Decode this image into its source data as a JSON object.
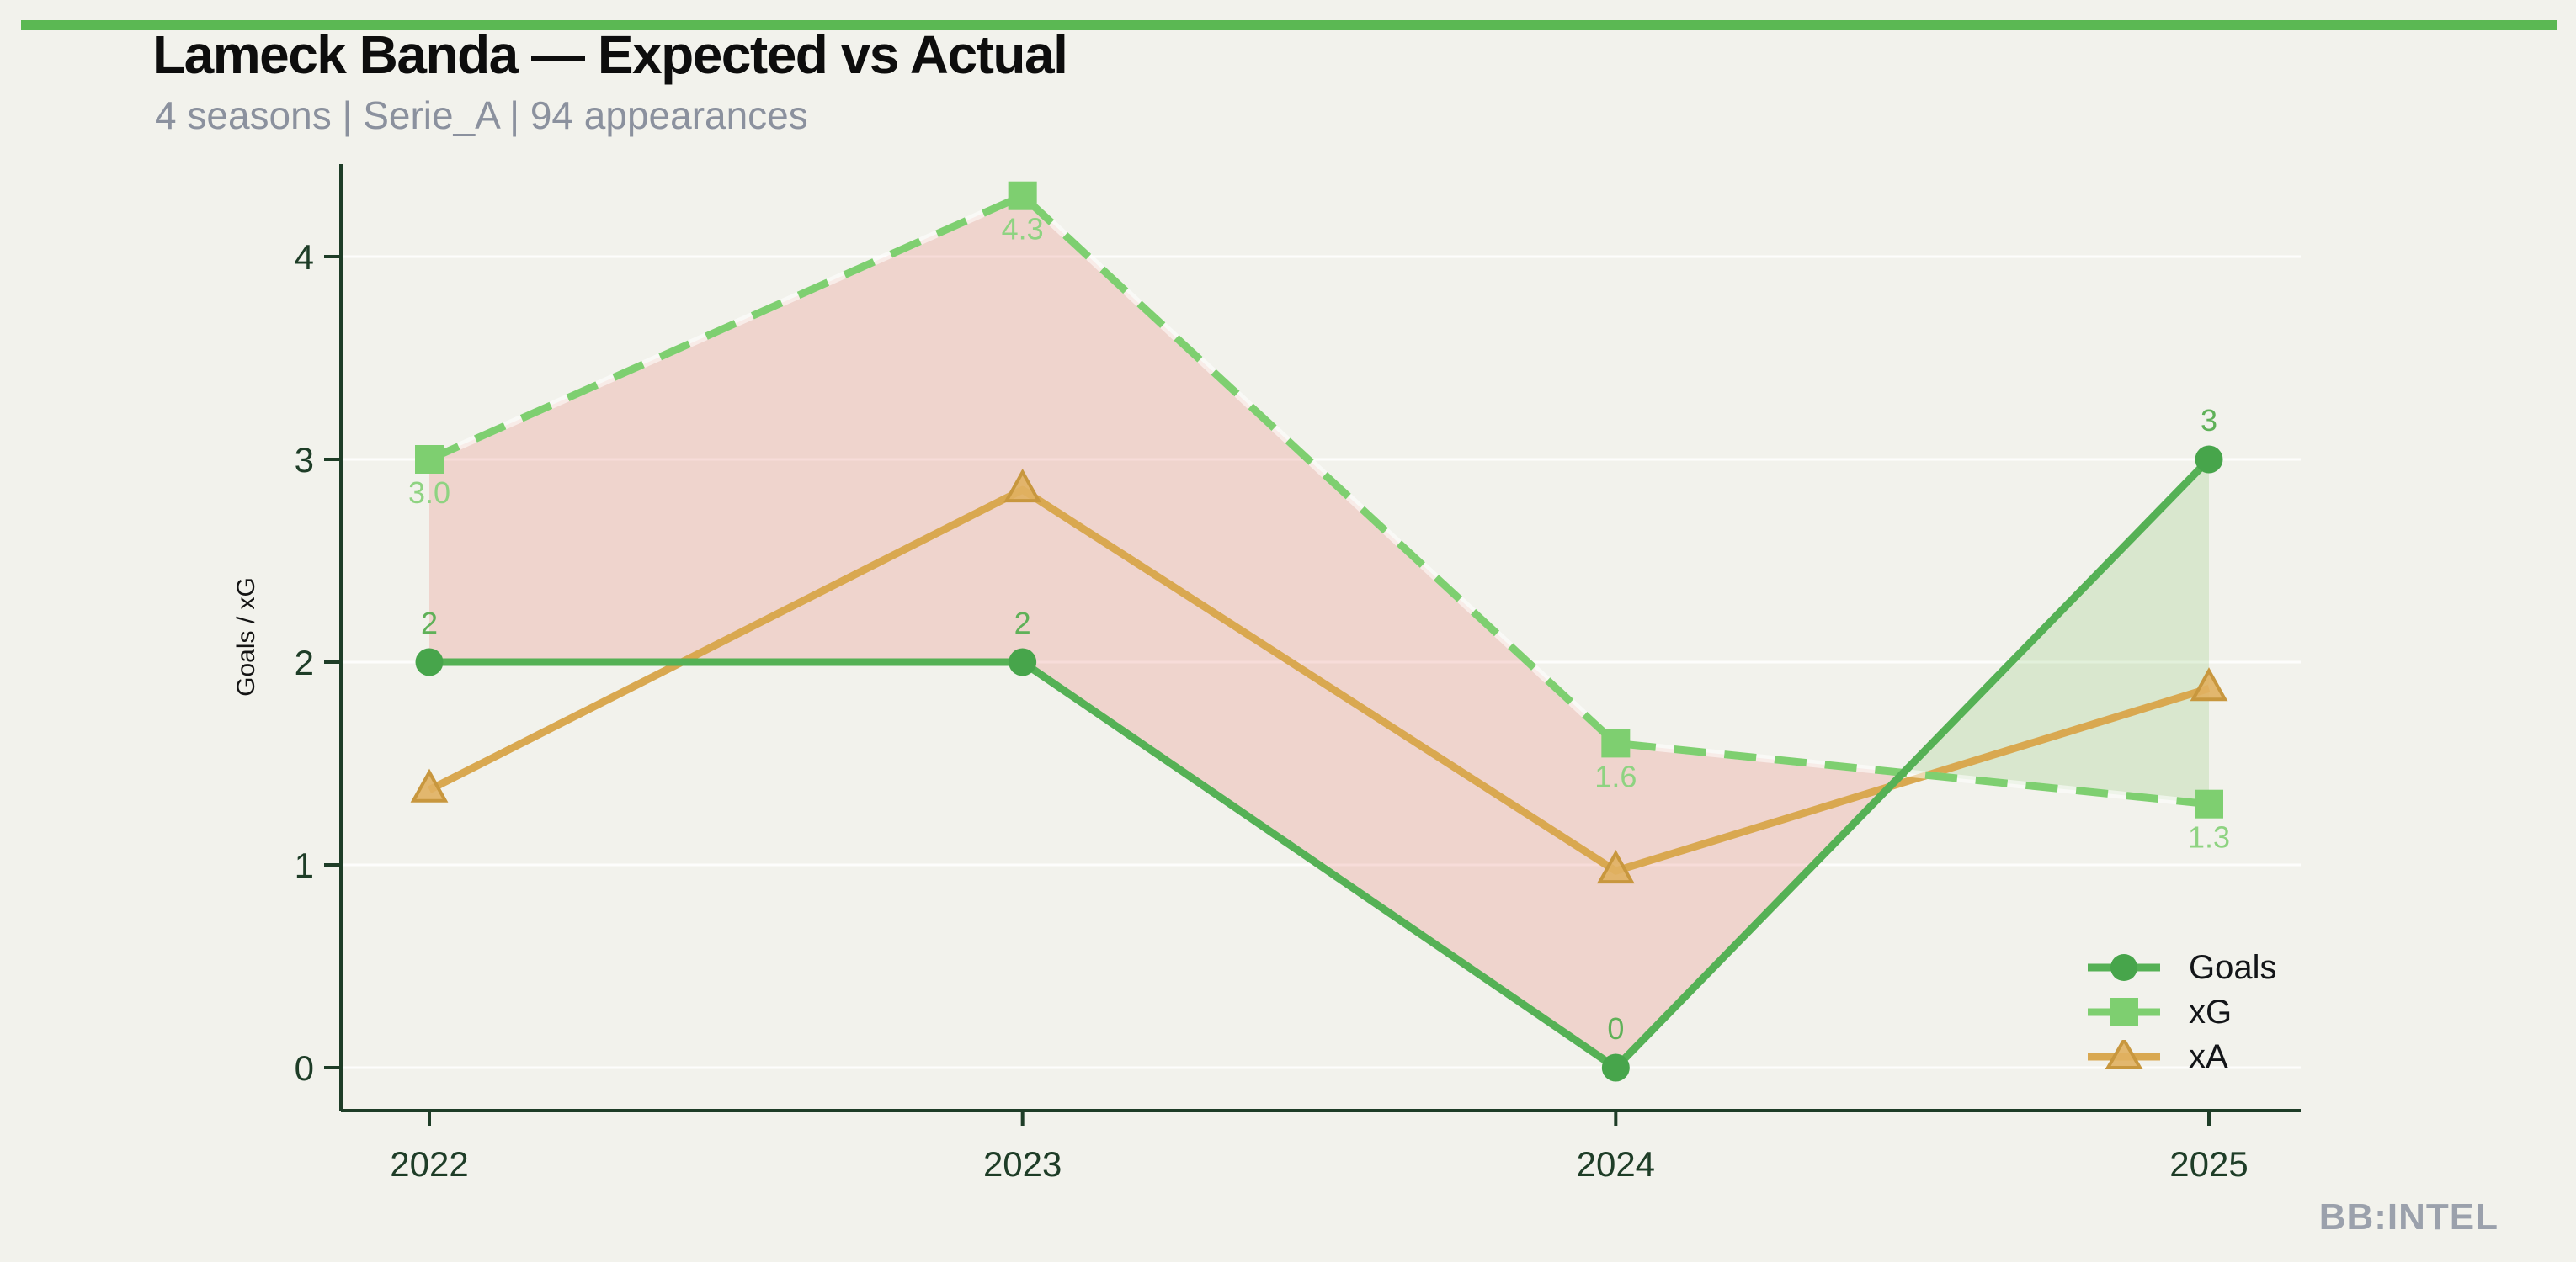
{
  "page": {
    "background_color": "#f2f2ec",
    "accent_bar_color": "#5bb853"
  },
  "header": {
    "title": "Lameck Banda — Expected vs Actual",
    "subtitle": "4 seasons | Serie_A | 94 appearances"
  },
  "watermark": "BB:INTEL",
  "chart_data": {
    "type": "line",
    "title": "Lameck Banda — Expected vs Actual",
    "subtitle": "4 seasons | Serie_A | 94 appearances",
    "categories": [
      "2022",
      "2023",
      "2024",
      "2025"
    ],
    "series": [
      {
        "name": "Goals",
        "values": [
          2,
          2,
          0,
          3
        ],
        "point_labels": [
          "2",
          "2",
          "0",
          "3"
        ],
        "label_position": "above",
        "style": "solid",
        "marker": "circle",
        "color": "#55b155",
        "marker_color": "#47a54b",
        "label_color": "#5fb158"
      },
      {
        "name": "xG",
        "values": [
          3.0,
          4.3,
          1.6,
          1.3
        ],
        "point_labels": [
          "3.0",
          "4.3",
          "1.6",
          "1.3"
        ],
        "label_position": "below",
        "style": "dashed",
        "marker": "square",
        "color": "#7ecf70",
        "marker_color": "#7ecf70",
        "label_color": "#8ed381"
      },
      {
        "name": "xA",
        "values": [
          1.37,
          2.85,
          0.97,
          1.87
        ],
        "point_labels": [
          "",
          "",
          "",
          ""
        ],
        "label_position": "none",
        "style": "solid",
        "marker": "triangle",
        "color": "#d9a850",
        "marker_color": "#e0b061",
        "marker_edge_color": "#c8973e",
        "label_color": "#d9a850"
      }
    ],
    "fills": [
      {
        "between": [
          "xG",
          "Goals"
        ],
        "where": "xG > Goals",
        "color": "rgba(235,135,125,0.28)",
        "meaning": "underperformance vs xG"
      },
      {
        "between": [
          "Goals",
          "xG"
        ],
        "where": "Goals > xG",
        "color": "rgba(120,190,90,0.20)",
        "meaning": "overperformance vs xG"
      }
    ],
    "xlabel": "",
    "ylabel": "Goals / xG",
    "y_ticks": [
      0,
      1,
      2,
      3,
      4
    ],
    "ylim": [
      -0.21,
      4.46
    ],
    "grid": {
      "horizontal": true,
      "vertical": false,
      "color": "rgba(255,255,255,0.85)"
    },
    "axis_color": "#1e3d27",
    "legend_position": "lower right"
  },
  "legend": {
    "items": [
      {
        "label": "Goals"
      },
      {
        "label": "xG"
      },
      {
        "label": "xA"
      }
    ]
  }
}
